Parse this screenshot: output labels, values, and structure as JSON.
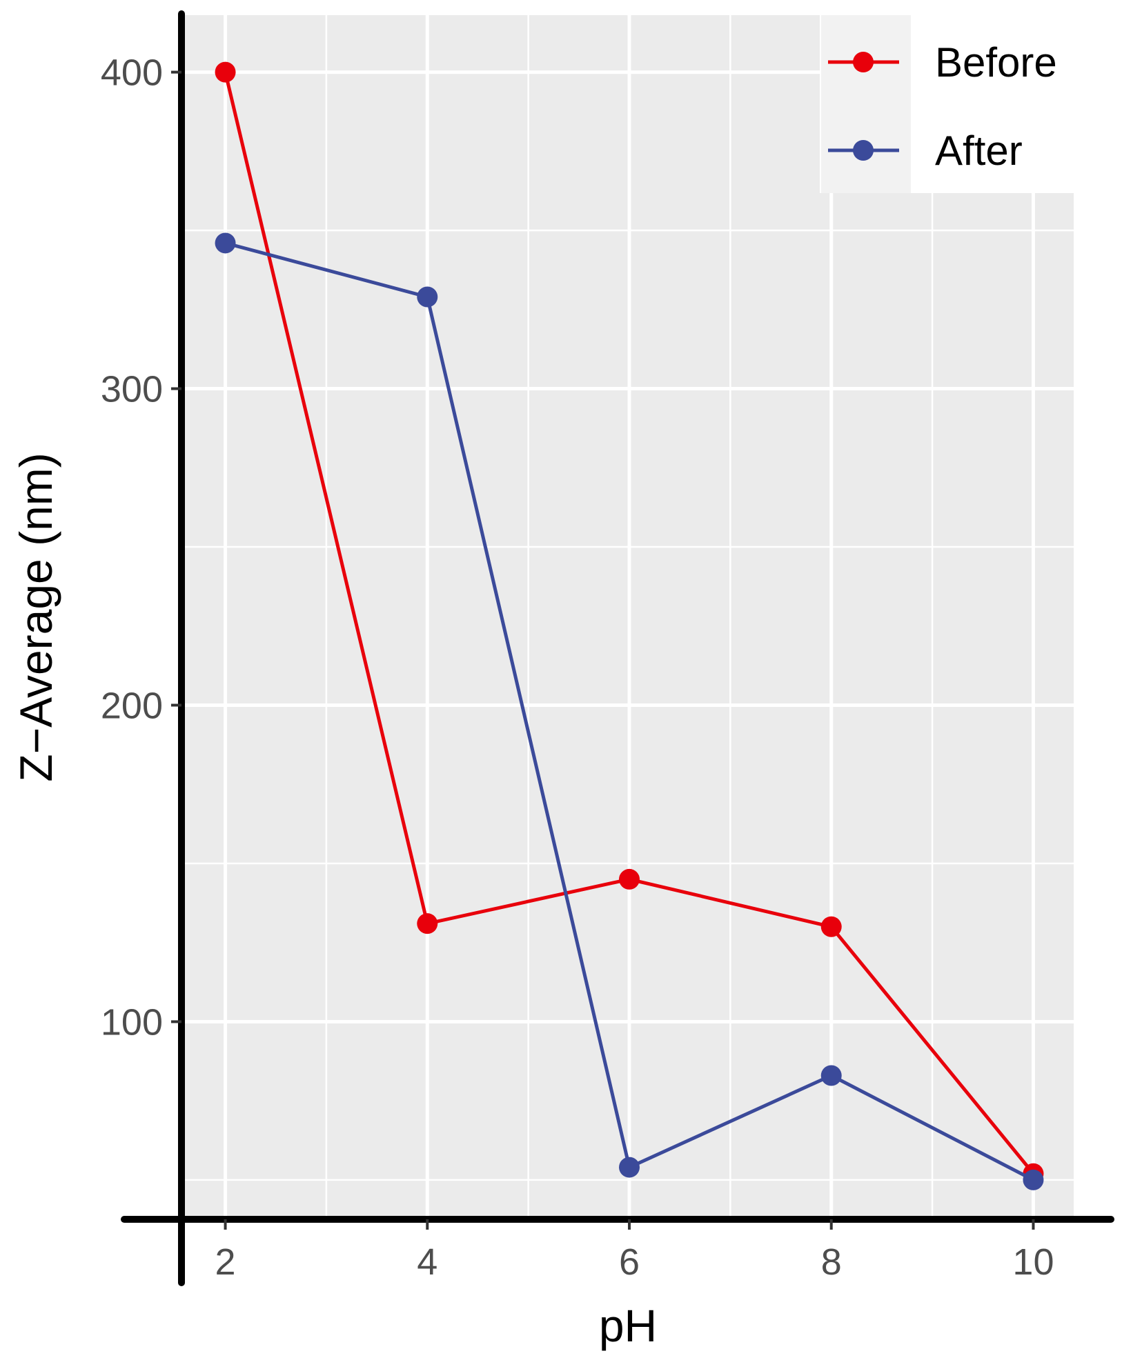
{
  "chart_data": {
    "type": "line",
    "title": "",
    "xlabel": "pH",
    "ylabel": "Z−Average (nm)",
    "x": [
      2,
      4,
      6,
      8,
      10
    ],
    "xticks": [
      "2",
      "4",
      "6",
      "8",
      "10"
    ],
    "yticks": [
      "100",
      "200",
      "300",
      "400"
    ],
    "xlim": [
      1.6,
      10.4
    ],
    "ylim": [
      38,
      418
    ],
    "grid": true,
    "legend_position": "top-right",
    "series": [
      {
        "name": "Before",
        "color": "#e8000b",
        "values": [
          400,
          131,
          145,
          130,
          52
        ]
      },
      {
        "name": "After",
        "color": "#3b4a9a",
        "values": [
          346,
          329,
          54,
          83,
          50
        ]
      }
    ],
    "colors": {
      "panel_background": "#ebebeb",
      "grid": "#ffffff",
      "axis_line": "#000000"
    }
  }
}
